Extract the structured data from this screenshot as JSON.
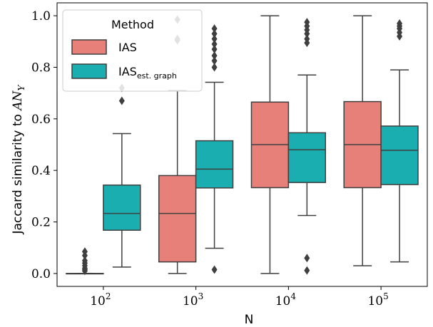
{
  "chart_data": {
    "type": "box",
    "xlabel": "N",
    "ylabel_prefix": "Jaccard similarity to ",
    "ylabel_math": "AN",
    "ylabel_sub": "Y",
    "ylim": [
      -0.05,
      1.05
    ],
    "yticks": [
      "0.0",
      "0.2",
      "0.4",
      "0.6",
      "0.8",
      "1.0"
    ],
    "categories": [
      {
        "base": "10",
        "exp": "2"
      },
      {
        "base": "10",
        "exp": "3"
      },
      {
        "base": "10",
        "exp": "4"
      },
      {
        "base": "10",
        "exp": "5"
      }
    ],
    "legend": {
      "title": "Method",
      "placement": "top-left",
      "entries": [
        {
          "label": "IAS",
          "sub": ""
        },
        {
          "label": "IAS",
          "sub": "est. graph"
        }
      ]
    },
    "series": [
      {
        "color": "#e8807a",
        "boxes": [
          {
            "min": 0.0,
            "q1": 0.0,
            "median": 0.0,
            "q3": 0.0,
            "max": 0.0,
            "outliers": [
              0.085,
              0.07,
              0.05,
              0.04,
              0.03,
              0.02,
              0.015,
              0.01
            ]
          },
          {
            "min": 0.0,
            "q1": 0.045,
            "median": 0.233,
            "q3": 0.38,
            "max": 0.71,
            "outliers": [
              0.985,
              0.91,
              0.905
            ]
          },
          {
            "min": 0.0,
            "q1": 0.333,
            "median": 0.5,
            "q3": 0.665,
            "max": 1.0,
            "outliers": []
          },
          {
            "min": 0.03,
            "q1": 0.333,
            "median": 0.5,
            "q3": 0.667,
            "max": 1.0,
            "outliers": []
          }
        ]
      },
      {
        "color": "#1aaeb0",
        "boxes": [
          {
            "min": 0.025,
            "q1": 0.168,
            "median": 0.233,
            "q3": 0.343,
            "max": 0.543,
            "outliers": [
              0.72,
              0.67
            ]
          },
          {
            "min": 0.098,
            "q1": 0.332,
            "median": 0.405,
            "q3": 0.515,
            "max": 0.742,
            "outliers": [
              0.95,
              0.93,
              0.91,
              0.89,
              0.87,
              0.845,
              0.825,
              0.8,
              0.015
            ]
          },
          {
            "min": 0.225,
            "q1": 0.353,
            "median": 0.48,
            "q3": 0.546,
            "max": 0.77,
            "outliers": [
              0.975,
              0.96,
              0.945,
              0.93,
              0.91,
              0.895,
              0.06,
              0.012
            ]
          },
          {
            "min": 0.045,
            "q1": 0.345,
            "median": 0.478,
            "q3": 0.572,
            "max": 0.79,
            "outliers": [
              0.97,
              0.96,
              0.95,
              0.935,
              0.92
            ]
          }
        ]
      }
    ]
  }
}
